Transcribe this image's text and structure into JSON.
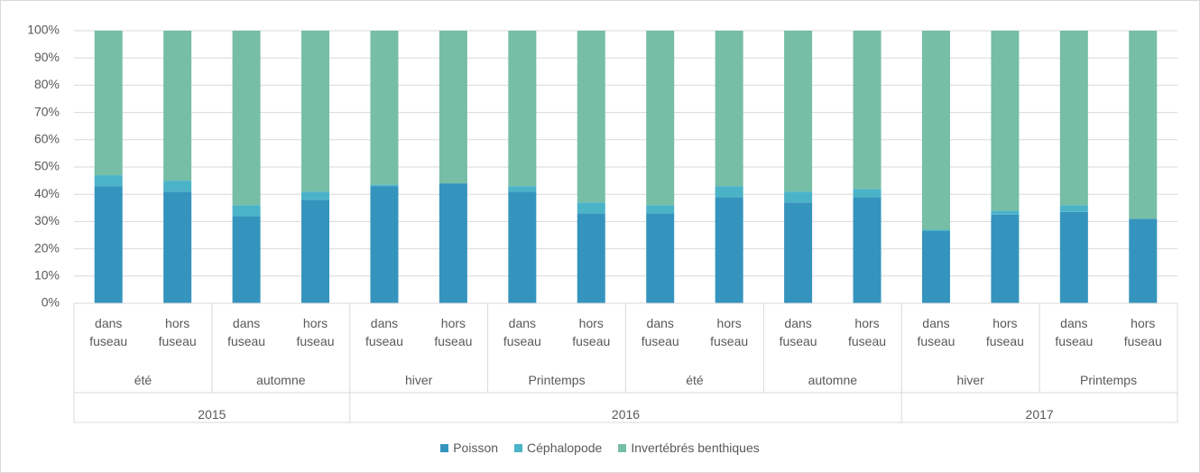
{
  "chart_data": {
    "type": "stacked_bar_100",
    "groups": [
      {
        "year": "2015",
        "seasons": [
          {
            "season": "été",
            "zones": [
              "dans fuseau",
              "hors fuseau"
            ]
          },
          {
            "season": "automne",
            "zones": [
              "dans fuseau",
              "hors fuseau"
            ]
          }
        ]
      },
      {
        "year": "2016",
        "seasons": [
          {
            "season": "hiver",
            "zones": [
              "dans fuseau",
              "hors fuseau"
            ]
          },
          {
            "season": "Printemps",
            "zones": [
              "dans fuseau",
              "hors fuseau"
            ]
          },
          {
            "season": "été",
            "zones": [
              "dans fuseau",
              "hors fuseau"
            ]
          },
          {
            "season": "automne",
            "zones": [
              "dans fuseau",
              "hors fuseau"
            ]
          }
        ]
      },
      {
        "year": "2017",
        "seasons": [
          {
            "season": "hiver",
            "zones": [
              "dans fuseau",
              "hors fuseau"
            ]
          },
          {
            "season": "Printemps",
            "zones": [
              "dans fuseau",
              "hors fuseau"
            ]
          }
        ]
      }
    ],
    "series": [
      {
        "name": "Poisson",
        "color": "#3594bd",
        "values": [
          43,
          41,
          32,
          38,
          43,
          44,
          41,
          33,
          33,
          39,
          37,
          39,
          26.5,
          32.5,
          33.5,
          31
        ]
      },
      {
        "name": "Céphalopode",
        "color": "#4bb3c8",
        "values": [
          4,
          4,
          4,
          3,
          0.5,
          0,
          2,
          4,
          3,
          4,
          4,
          3,
          0.5,
          1.5,
          2.5,
          0
        ]
      },
      {
        "name": "Invertébrés benthiques",
        "color": "#76bea6",
        "values": [
          53,
          55,
          64,
          59,
          56.5,
          56,
          57,
          63,
          64,
          57,
          59,
          58,
          73,
          66,
          64,
          69
        ]
      }
    ],
    "ylim": [
      0,
      100
    ],
    "yticks": [
      {
        "value": 0,
        "label": "0%"
      },
      {
        "value": 10,
        "label": "10%"
      },
      {
        "value": 20,
        "label": "20%"
      },
      {
        "value": 30,
        "label": "30%"
      },
      {
        "value": 40,
        "label": "40%"
      },
      {
        "value": 50,
        "label": "50%"
      },
      {
        "value": 60,
        "label": "60%"
      },
      {
        "value": 70,
        "label": "70%"
      },
      {
        "value": 80,
        "label": "80%"
      },
      {
        "value": 90,
        "label": "90%"
      },
      {
        "value": 100,
        "label": "100%"
      }
    ],
    "grid": true,
    "legend": "bottom"
  }
}
